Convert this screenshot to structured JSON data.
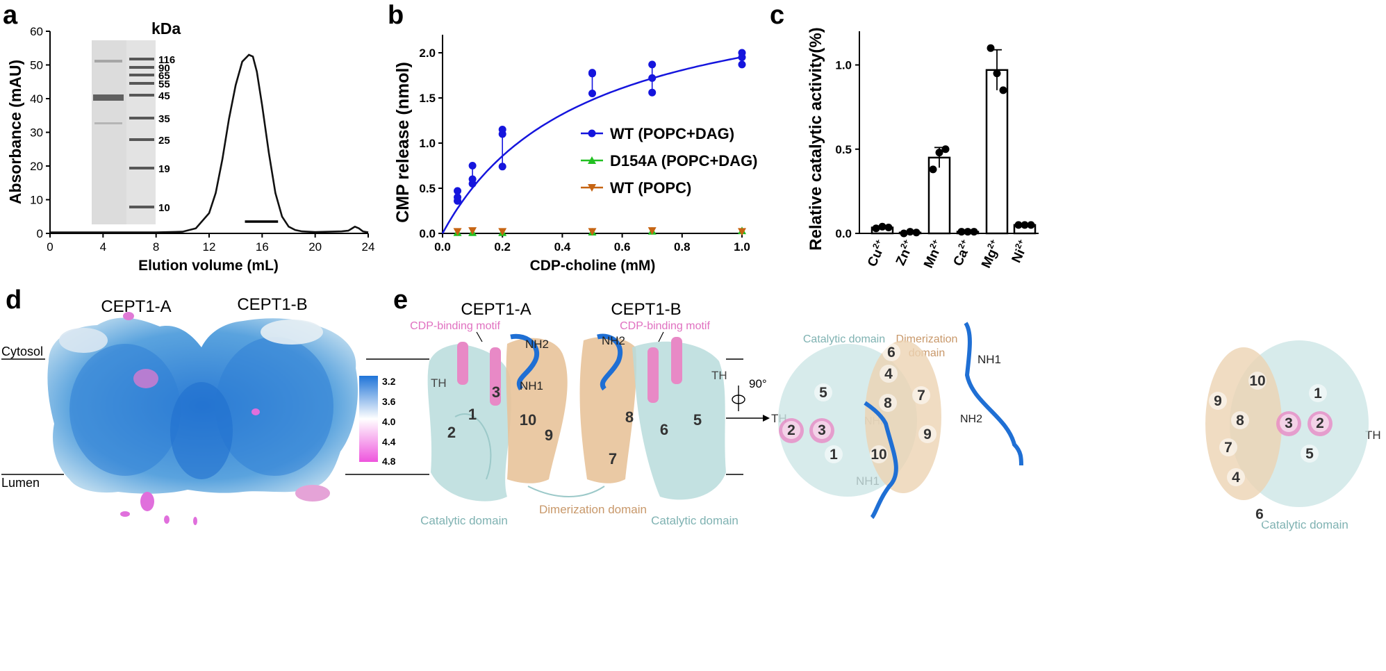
{
  "panels": {
    "a": {
      "letter": "a",
      "unit_label": "kDa",
      "marker_bands": [
        "116",
        "90",
        "65",
        "55",
        "45",
        "35",
        "25",
        "19",
        "10"
      ]
    },
    "b": {
      "letter": "b"
    },
    "c": {
      "letter": "c"
    },
    "d": {
      "letter": "d",
      "label_a": "CEPT1-A",
      "label_b": "CEPT1-B",
      "cytosol": "Cytosol",
      "lumen": "Lumen",
      "scale_ticks": [
        "3.2",
        "3.6",
        "4.0",
        "4.4",
        "4.8"
      ],
      "colors": {
        "low": "#1f74d8",
        "mid": "#ffffff",
        "high": "#ee55dd"
      }
    },
    "e": {
      "letter": "e",
      "label_a": "CEPT1-A",
      "label_b": "CEPT1-B",
      "cdp_motif": "CDP-binding motif",
      "catalytic": "Catalytic domain",
      "dimerization": "Dimerization domain",
      "dimerization_l1": "Dimerization",
      "dimerization_l2": "domain",
      "rotation": "90°",
      "th": "TH",
      "nh1": "NH1",
      "nh2": "NH2",
      "helix_nums_side": [
        "2",
        "1",
        "3",
        "10",
        "9",
        "8",
        "7",
        "6",
        "5"
      ],
      "helix_nums_top_left": [
        "6",
        "4",
        "5",
        "8",
        "7",
        "2",
        "3",
        "9",
        "1",
        "10"
      ],
      "helix_nums_top_right": [
        "10",
        "1",
        "9",
        "3",
        "2",
        "8",
        "7",
        "5",
        "4",
        "6"
      ],
      "colors": {
        "catalytic": "#a9d6d6",
        "dimer": "#e6be90",
        "motif": "#e889c6",
        "nterm": "#1f6fd4"
      }
    }
  },
  "chart_data": [
    {
      "type": "line",
      "panel": "a",
      "xlabel": "Elution volume (mL)",
      "ylabel": "Absorbance (mAU)",
      "xlim": [
        0,
        24
      ],
      "ylim": [
        0,
        60
      ],
      "xticks": [
        "0",
        "4",
        "8",
        "12",
        "16",
        "20",
        "24"
      ],
      "yticks": [
        "0",
        "10",
        "20",
        "30",
        "40",
        "50",
        "60"
      ],
      "series": [
        {
          "x": [
            0,
            4,
            8,
            10,
            11,
            12,
            12.5,
            13,
            13.5,
            14,
            14.5,
            15,
            15.3,
            15.6,
            16,
            16.5,
            17,
            17.5,
            18,
            18.5,
            19,
            20,
            21,
            22,
            22.5,
            23,
            23.3,
            23.6,
            24
          ],
          "y": [
            0.3,
            0.3,
            0.3,
            0.5,
            1.5,
            6,
            12,
            22,
            34,
            44,
            51,
            53,
            52.5,
            48,
            38,
            24,
            12,
            5,
            2,
            1,
            0.6,
            0.4,
            0.5,
            0.6,
            0.8,
            2,
            1.5,
            0.6,
            0.3
          ]
        }
      ],
      "fraction_bar": [
        14.7,
        17.2
      ]
    },
    {
      "type": "scatter",
      "panel": "b",
      "xlabel": "CDP-choline (mM)",
      "ylabel": "CMP release (nmol)",
      "xlim": [
        0,
        1.0
      ],
      "ylim": [
        0,
        2.2
      ],
      "xticks": [
        "0.0",
        "0.2",
        "0.4",
        "0.6",
        "0.8",
        "1.0"
      ],
      "yticks": [
        "0.0",
        "0.5",
        "1.0",
        "1.5",
        "2.0"
      ],
      "legend_position": "center-right",
      "series": [
        {
          "name": "WT (POPC+DAG)",
          "color": "#1515dd",
          "marker": "circle",
          "x": [
            0.05,
            0.05,
            0.05,
            0.1,
            0.1,
            0.1,
            0.2,
            0.2,
            0.2,
            0.5,
            0.5,
            0.5,
            0.7,
            0.7,
            0.7,
            1.0,
            1.0,
            1.0
          ],
          "y": [
            0.36,
            0.4,
            0.47,
            0.55,
            0.6,
            0.75,
            1.1,
            1.15,
            0.74,
            1.55,
            1.77,
            1.78,
            1.56,
            1.72,
            1.87,
            1.87,
            1.95,
            2.0
          ],
          "fit": {
            "vmax": 2.87,
            "km": 0.47
          }
        },
        {
          "name": "D154A (POPC+DAG)",
          "color": "#22c022",
          "marker": "triangle-up",
          "x": [
            0.05,
            0.1,
            0.2,
            0.5,
            0.7,
            1.0
          ],
          "y": [
            0.01,
            0.01,
            0.01,
            0.015,
            0.025,
            0.03
          ]
        },
        {
          "name": "WT (POPC)",
          "color": "#c66412",
          "marker": "triangle-down",
          "x": [
            0.05,
            0.1,
            0.2,
            0.5,
            0.7,
            1.0
          ],
          "y": [
            0.02,
            0.03,
            0.02,
            0.02,
            0.03,
            0.02
          ]
        }
      ]
    },
    {
      "type": "bar",
      "panel": "c",
      "ylabel": "Relative catalytic activity(%)",
      "ylim": [
        0,
        1.2
      ],
      "yticks": [
        "0.0",
        "0.5",
        "1.0"
      ],
      "categories": [
        "Cu2+",
        "Zn2+",
        "Mn2+",
        "Ca2+",
        "Mg2+",
        "Ni2+"
      ],
      "category_base": [
        "Cu",
        "Zn",
        "Mn",
        "Ca",
        "Mg",
        "Ni"
      ],
      "category_sup": [
        "2+",
        "2+",
        "2+",
        "2+",
        "2+",
        "2+"
      ],
      "values": [
        0.035,
        0.005,
        0.45,
        0.01,
        0.97,
        0.05
      ],
      "errors": [
        0.005,
        0.005,
        0.06,
        0.005,
        0.12,
        0.005
      ],
      "points": [
        [
          0.03,
          0.04,
          0.035
        ],
        [
          0.0,
          0.01,
          0.005
        ],
        [
          0.38,
          0.48,
          0.5
        ],
        [
          0.01,
          0.01,
          0.01
        ],
        [
          1.1,
          0.95,
          0.85
        ],
        [
          0.05,
          0.05,
          0.05
        ]
      ]
    }
  ]
}
